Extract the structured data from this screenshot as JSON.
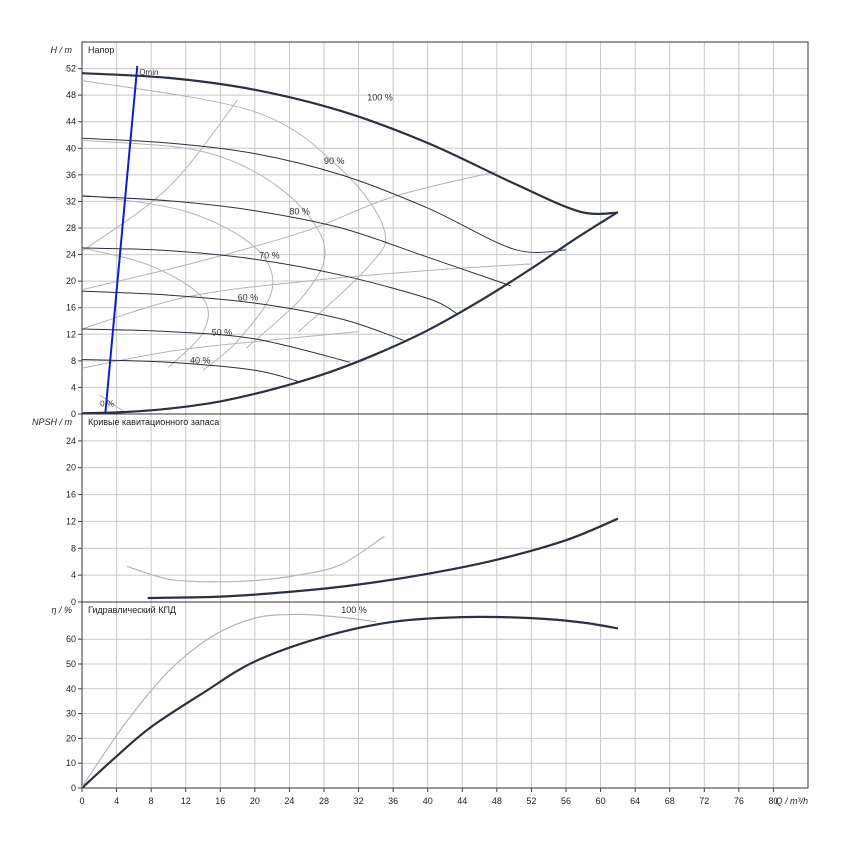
{
  "chart_data": {
    "type": "line",
    "x_axis": {
      "label": "Q / m³/h",
      "min": 0,
      "max": 84,
      "step": 4,
      "ticks": [
        0,
        4,
        8,
        12,
        16,
        20,
        24,
        28,
        32,
        36,
        40,
        44,
        48,
        52,
        56,
        60,
        64,
        68,
        72,
        76,
        80
      ]
    },
    "panels": [
      {
        "id": "head",
        "title": "Напор",
        "y_label": "H / m",
        "ylim": [
          0,
          56
        ],
        "y_ticks": [
          0,
          4,
          8,
          12,
          16,
          20,
          24,
          28,
          32,
          36,
          40,
          44,
          48,
          52
        ],
        "curves": [
          {
            "name": "100 %",
            "style": "main",
            "points": [
              [
                0,
                51.3
              ],
              [
                10,
                50.6
              ],
              [
                20,
                48.8
              ],
              [
                30,
                45.6
              ],
              [
                40,
                40.8
              ],
              [
                50,
                34.7
              ],
              [
                57.5,
                30.5
              ],
              [
                62,
                30.3
              ]
            ]
          },
          {
            "name": "90 %",
            "style": "thin",
            "points": [
              [
                0,
                41.5
              ],
              [
                10,
                40.8
              ],
              [
                20,
                39.2
              ],
              [
                30,
                36.0
              ],
              [
                40,
                31.0
              ],
              [
                50,
                24.8
              ],
              [
                56,
                24.7
              ]
            ]
          },
          {
            "name": "80 %",
            "style": "thin",
            "points": [
              [
                0,
                32.8
              ],
              [
                10,
                32.1
              ],
              [
                20,
                30.6
              ],
              [
                30,
                28.0
              ],
              [
                40,
                23.6
              ],
              [
                49.6,
                19.3
              ]
            ]
          },
          {
            "name": "70 %",
            "style": "thin",
            "points": [
              [
                0,
                25.0
              ],
              [
                10,
                24.6
              ],
              [
                20,
                23.3
              ],
              [
                30,
                20.9
              ],
              [
                40,
                17.4
              ],
              [
                43.4,
                15.1
              ]
            ]
          },
          {
            "name": "60 %",
            "style": "thin",
            "points": [
              [
                0,
                18.5
              ],
              [
                10,
                17.9
              ],
              [
                20,
                16.7
              ],
              [
                30,
                14.3
              ],
              [
                37.2,
                11.1
              ]
            ]
          },
          {
            "name": "50 %",
            "style": "thin",
            "points": [
              [
                0,
                12.8
              ],
              [
                10,
                12.4
              ],
              [
                20,
                11.3
              ],
              [
                31,
                7.8
              ]
            ]
          },
          {
            "name": "40 %",
            "style": "thin",
            "points": [
              [
                0,
                8.2
              ],
              [
                10,
                7.8
              ],
              [
                20,
                6.6
              ],
              [
                25,
                4.9
              ]
            ]
          },
          {
            "name": "",
            "style": "main",
            "points": [
              [
                0,
                0.1
              ],
              [
                5,
                0.3
              ],
              [
                10,
                0.8
              ],
              [
                16,
                1.9
              ],
              [
                22,
                3.7
              ],
              [
                28,
                6.0
              ],
              [
                34,
                9.0
              ],
              [
                40,
                12.6
              ],
              [
                46,
                17.0
              ],
              [
                52,
                21.9
              ],
              [
                57,
                26.3
              ],
              [
                62,
                30.4
              ]
            ]
          }
        ],
        "iso_efficiency_lines": [
          {
            "points": [
              [
                0,
                18.7
              ],
              [
                14,
                23.1
              ],
              [
                26,
                27.6
              ],
              [
                36,
                32.7
              ],
              [
                48,
                36.5
              ]
            ]
          },
          {
            "points": [
              [
                0,
                12.8
              ],
              [
                12,
                17.6
              ],
              [
                26,
                20.0
              ],
              [
                40,
                21.6
              ],
              [
                52,
                22.6
              ]
            ]
          },
          {
            "points": [
              [
                0,
                6.9
              ],
              [
                10,
                9.4
              ],
              [
                20,
                10.9
              ],
              [
                32,
                12.4
              ]
            ]
          },
          {
            "points": [
              [
                0,
                24.5
              ],
              [
                10,
                34.1
              ],
              [
                18,
                47.3
              ]
            ]
          }
        ],
        "power_lines": [
          {
            "points": [
              [
                0,
                50.2
              ],
              [
                20,
                45.5
              ],
              [
                30,
                36.8
              ],
              [
                35,
                27.6
              ],
              [
                33,
                22.0
              ],
              [
                25,
                12.3
              ]
            ]
          },
          {
            "points": [
              [
                0,
                41.2
              ],
              [
                14,
                39.5
              ],
              [
                23,
                33.9
              ],
              [
                28,
                25.6
              ],
              [
                26,
                18.4
              ],
              [
                19,
                9.9
              ]
            ]
          },
          {
            "points": [
              [
                0,
                33.0
              ],
              [
                12,
                30.5
              ],
              [
                20,
                25.1
              ],
              [
                22,
                18.7
              ],
              [
                18,
                11.0
              ],
              [
                14,
                6.6
              ]
            ]
          },
          {
            "points": [
              [
                0,
                25.0
              ],
              [
                8,
                22.3
              ],
              [
                14,
                17.4
              ],
              [
                14,
                12.3
              ],
              [
                10,
                7.0
              ]
            ]
          },
          {
            "points": [
              [
                2,
                2.9
              ],
              [
                5,
                0.2
              ]
            ]
          }
        ],
        "min_flow_line": {
          "label": "Qmin",
          "points": [
            [
              2.7,
              0.1
            ],
            [
              6.4,
              52.4
            ]
          ]
        },
        "min_speed_label": "0 %"
      },
      {
        "id": "npsh",
        "title": "Кривые кавитационного запаса",
        "y_label": "NPSH / m",
        "ylim": [
          0,
          28
        ],
        "y_ticks": [
          0,
          4,
          8,
          12,
          16,
          20,
          24
        ],
        "curves": [
          {
            "name": "",
            "style": "main",
            "points": [
              [
                7.6,
                0.6
              ],
              [
                16,
                0.8
              ],
              [
                24,
                1.5
              ],
              [
                32,
                2.6
              ],
              [
                40,
                4.2
              ],
              [
                48,
                6.3
              ],
              [
                56,
                9.2
              ],
              [
                62,
                12.4
              ]
            ]
          },
          {
            "name": "",
            "style": "thin",
            "points": [
              [
                5.2,
                5.3
              ],
              [
                10,
                3.4
              ],
              [
                15,
                3.0
              ],
              [
                20,
                3.2
              ],
              [
                25,
                4.0
              ],
              [
                30,
                5.6
              ],
              [
                35,
                9.8
              ]
            ]
          }
        ]
      },
      {
        "id": "efficiency",
        "title": "Гидравлический КПД",
        "y_label": "η / %",
        "ylim": [
          0,
          75
        ],
        "y_ticks": [
          0,
          10,
          20,
          30,
          40,
          50,
          60
        ],
        "curves": [
          {
            "name": "100 %",
            "style": "main",
            "points": [
              [
                0,
                0
              ],
              [
                4,
                12.8
              ],
              [
                8,
                24.6
              ],
              [
                14,
                38.3
              ],
              [
                20,
                51.0
              ],
              [
                28,
                61.0
              ],
              [
                36,
                67.0
              ],
              [
                44,
                68.9
              ],
              [
                52,
                68.5
              ],
              [
                58,
                66.7
              ],
              [
                62,
                64.3
              ]
            ]
          },
          {
            "name": "",
            "style": "thin",
            "points": [
              [
                0,
                0.5
              ],
              [
                5,
                26
              ],
              [
                10,
                47
              ],
              [
                15,
                61
              ],
              [
                20,
                68.5
              ],
              [
                25,
                70
              ],
              [
                30,
                68.8
              ],
              [
                34,
                67.0
              ]
            ]
          }
        ]
      }
    ]
  }
}
